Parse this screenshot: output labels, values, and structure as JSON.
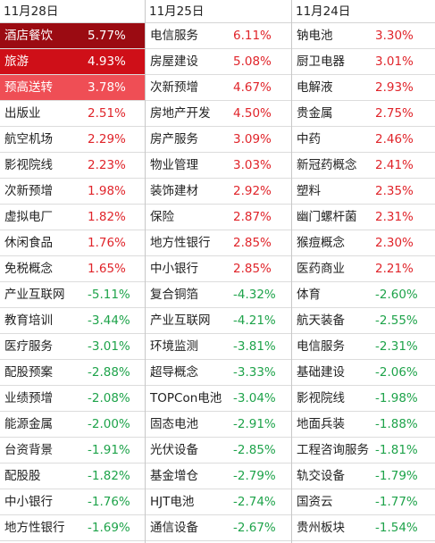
{
  "columns": [
    {
      "date": "11月28日",
      "rows": [
        {
          "name": "酒店餐饮",
          "pct": "5.77%",
          "dir": "up",
          "hl": 1
        },
        {
          "name": "旅游",
          "pct": "4.93%",
          "dir": "up",
          "hl": 2
        },
        {
          "name": "预高送转",
          "pct": "3.78%",
          "dir": "up",
          "hl": 3
        },
        {
          "name": "出版业",
          "pct": "2.51%",
          "dir": "up"
        },
        {
          "name": "航空机场",
          "pct": "2.29%",
          "dir": "up"
        },
        {
          "name": "影视院线",
          "pct": "2.23%",
          "dir": "up"
        },
        {
          "name": "次新预增",
          "pct": "1.98%",
          "dir": "up"
        },
        {
          "name": "虚拟电厂",
          "pct": "1.82%",
          "dir": "up"
        },
        {
          "name": "休闲食品",
          "pct": "1.76%",
          "dir": "up"
        },
        {
          "name": "免税概念",
          "pct": "1.65%",
          "dir": "up"
        },
        {
          "name": "产业互联网",
          "pct": "-5.11%",
          "dir": "down"
        },
        {
          "name": "教育培训",
          "pct": "-3.44%",
          "dir": "down"
        },
        {
          "name": "医疗服务",
          "pct": "-3.01%",
          "dir": "down"
        },
        {
          "name": "配股预案",
          "pct": "-2.88%",
          "dir": "down"
        },
        {
          "name": "业绩预增",
          "pct": "-2.08%",
          "dir": "down"
        },
        {
          "name": "能源金属",
          "pct": "-2.00%",
          "dir": "down"
        },
        {
          "name": "台资背景",
          "pct": "-1.91%",
          "dir": "down"
        },
        {
          "name": "配股股",
          "pct": "-1.82%",
          "dir": "down"
        },
        {
          "name": "中小银行",
          "pct": "-1.76%",
          "dir": "down"
        },
        {
          "name": "地方性银行",
          "pct": "-1.69%",
          "dir": "down"
        }
      ]
    },
    {
      "date": "11月25日",
      "rows": [
        {
          "name": "电信服务",
          "pct": "6.11%",
          "dir": "up"
        },
        {
          "name": "房屋建设",
          "pct": "5.08%",
          "dir": "up"
        },
        {
          "name": "次新预增",
          "pct": "4.67%",
          "dir": "up"
        },
        {
          "name": "房地产开发",
          "pct": "4.50%",
          "dir": "up"
        },
        {
          "name": "房产服务",
          "pct": "3.09%",
          "dir": "up"
        },
        {
          "name": "物业管理",
          "pct": "3.03%",
          "dir": "up"
        },
        {
          "name": "装饰建材",
          "pct": "2.92%",
          "dir": "up"
        },
        {
          "name": "保险",
          "pct": "2.87%",
          "dir": "up"
        },
        {
          "name": "地方性银行",
          "pct": "2.85%",
          "dir": "up"
        },
        {
          "name": "中小银行",
          "pct": "2.85%",
          "dir": "up"
        },
        {
          "name": "复合铜箔",
          "pct": "-4.32%",
          "dir": "down"
        },
        {
          "name": "产业互联网",
          "pct": "-4.21%",
          "dir": "down"
        },
        {
          "name": "环境监测",
          "pct": "-3.81%",
          "dir": "down"
        },
        {
          "name": "超导概念",
          "pct": "-3.33%",
          "dir": "down"
        },
        {
          "name": "TOPCon电池",
          "pct": "-3.04%",
          "dir": "down"
        },
        {
          "name": "固态电池",
          "pct": "-2.91%",
          "dir": "down"
        },
        {
          "name": "光伏设备",
          "pct": "-2.85%",
          "dir": "down"
        },
        {
          "name": "基金增仓",
          "pct": "-2.79%",
          "dir": "down"
        },
        {
          "name": "HJT电池",
          "pct": "-2.74%",
          "dir": "down"
        },
        {
          "name": "通信设备",
          "pct": "-2.67%",
          "dir": "down"
        }
      ]
    },
    {
      "date": "11月24日",
      "rows": [
        {
          "name": "钠电池",
          "pct": "3.30%",
          "dir": "up"
        },
        {
          "name": "厨卫电器",
          "pct": "3.01%",
          "dir": "up"
        },
        {
          "name": "电解液",
          "pct": "2.93%",
          "dir": "up"
        },
        {
          "name": "贵金属",
          "pct": "2.75%",
          "dir": "up"
        },
        {
          "name": "中药",
          "pct": "2.46%",
          "dir": "up"
        },
        {
          "name": "新冠药概念",
          "pct": "2.41%",
          "dir": "up"
        },
        {
          "name": "塑料",
          "pct": "2.35%",
          "dir": "up"
        },
        {
          "name": "幽门螺杆菌",
          "pct": "2.31%",
          "dir": "up"
        },
        {
          "name": "猴痘概念",
          "pct": "2.30%",
          "dir": "up"
        },
        {
          "name": "医药商业",
          "pct": "2.21%",
          "dir": "up"
        },
        {
          "name": "体育",
          "pct": "-2.60%",
          "dir": "down"
        },
        {
          "name": "航天装备",
          "pct": "-2.55%",
          "dir": "down"
        },
        {
          "name": "电信服务",
          "pct": "-2.31%",
          "dir": "down"
        },
        {
          "name": "基础建设",
          "pct": "-2.06%",
          "dir": "down"
        },
        {
          "name": "影视院线",
          "pct": "-1.98%",
          "dir": "down"
        },
        {
          "name": "地面兵装",
          "pct": "-1.88%",
          "dir": "down"
        },
        {
          "name": "工程咨询服务",
          "pct": "-1.81%",
          "dir": "down"
        },
        {
          "name": "轨交设备",
          "pct": "-1.79%",
          "dir": "down"
        },
        {
          "name": "国资云",
          "pct": "-1.77%",
          "dir": "down"
        },
        {
          "name": "贵州板块",
          "pct": "-1.54%",
          "dir": "down"
        }
      ]
    }
  ],
  "colors": {
    "up": "#e0242a",
    "down": "#1ea34a",
    "hl1": "#9b0b12",
    "hl2": "#cf0f18",
    "hl3": "#ef4e55"
  }
}
